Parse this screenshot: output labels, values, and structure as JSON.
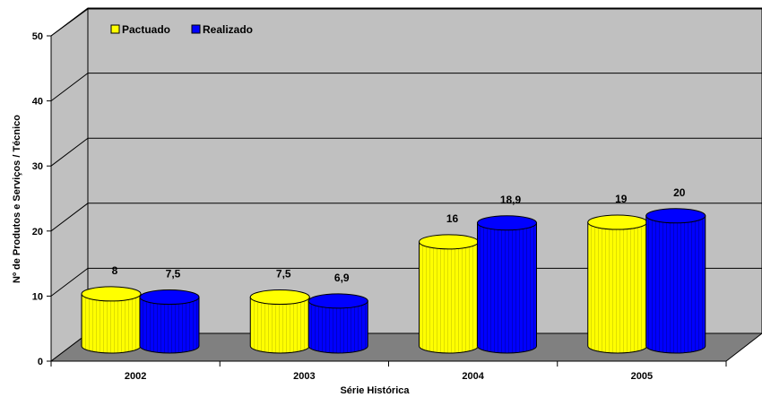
{
  "chart_data": {
    "type": "bar",
    "style": "3d-cylinder",
    "title": "",
    "categories": [
      "2002",
      "2003",
      "2004",
      "2005"
    ],
    "series": [
      {
        "name": "Pactuado",
        "values": [
          8,
          7.5,
          16,
          19
        ],
        "labels": [
          "8",
          "7,5",
          "16",
          "19"
        ],
        "color": "#ffff00"
      },
      {
        "name": "Realizado",
        "values": [
          7.5,
          6.9,
          18.9,
          20
        ],
        "labels": [
          "7,5",
          "6,9",
          "18,9",
          "20"
        ],
        "color": "#0000ff"
      }
    ],
    "xlabel": "Série Histórica",
    "ylabel": "Nº de Produtos e Serviços / Técnico",
    "ylim": [
      0,
      50
    ],
    "yticks": [
      "0",
      "10",
      "20",
      "30",
      "40",
      "50"
    ],
    "grid": true,
    "legend_position": "top-left",
    "colors": {
      "wall": "#c0c0c0",
      "floor": "#808080",
      "gridline": "#000000"
    }
  }
}
